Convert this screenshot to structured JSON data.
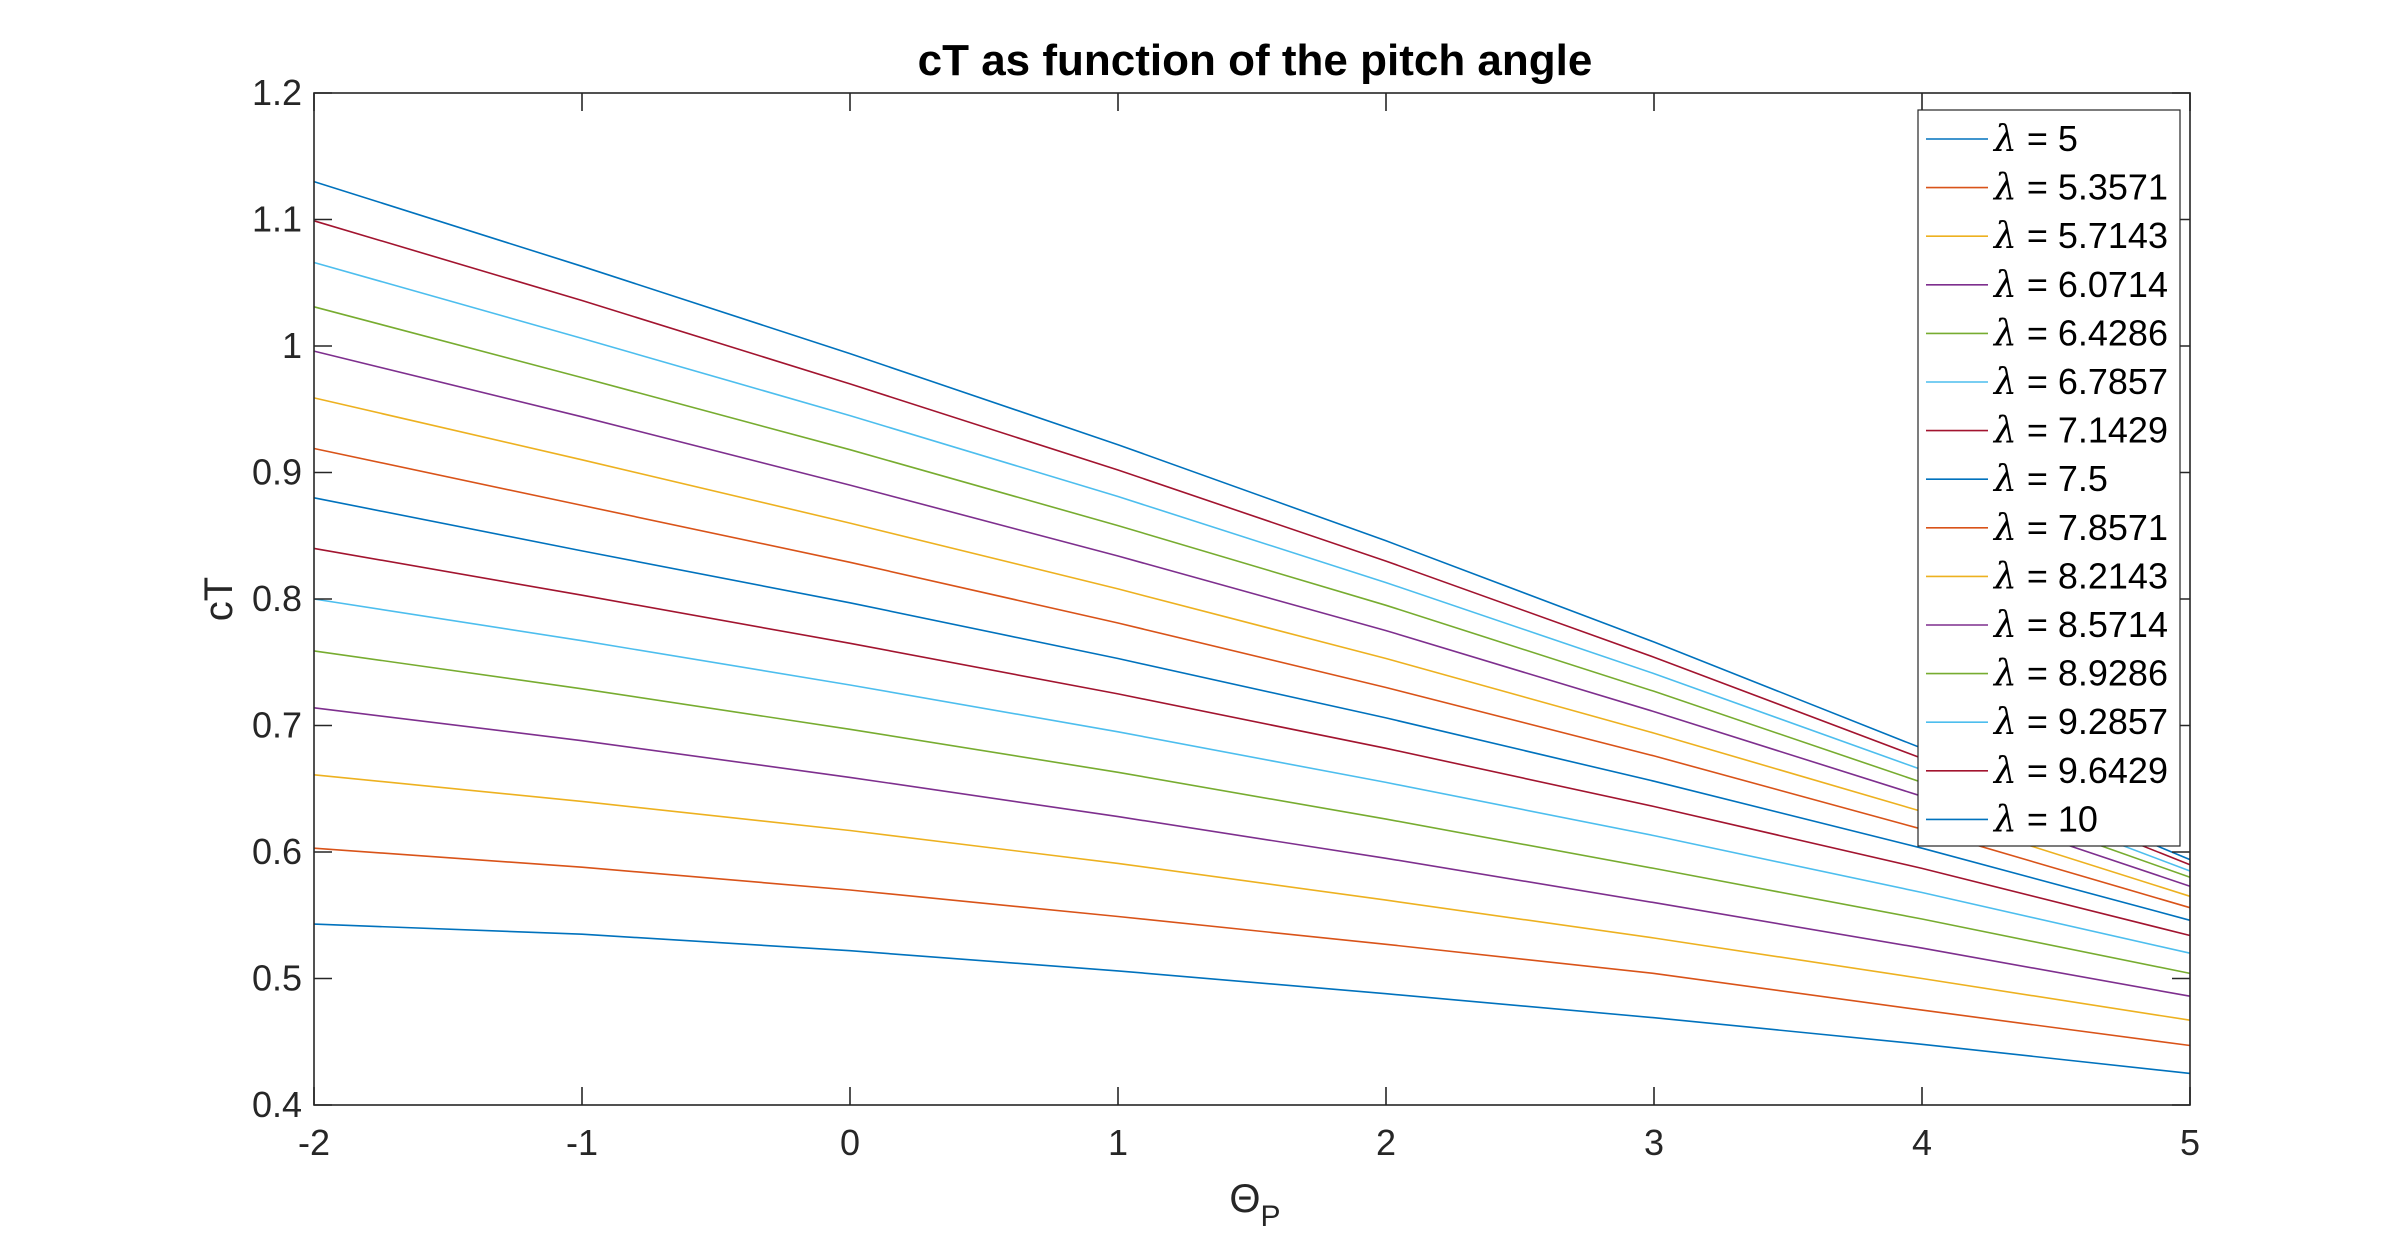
{
  "chart_data": {
    "type": "line",
    "title": "cT as function of the pitch angle",
    "xlabel": "Θ",
    "xlabel_subscript": "P",
    "ylabel": "cT",
    "xlim": [
      -2,
      5
    ],
    "ylim": [
      0.4,
      1.2
    ],
    "xticks": [
      -2,
      -1,
      0,
      1,
      2,
      3,
      4,
      5
    ],
    "yticks": [
      0.4,
      0.5,
      0.6,
      0.7,
      0.8,
      0.9,
      1,
      1.1,
      1.2
    ],
    "xtick_labels": [
      "-2",
      "-1",
      "0",
      "1",
      "2",
      "3",
      "4",
      "5"
    ],
    "ytick_labels": [
      "0.4",
      "0.5",
      "0.6",
      "0.7",
      "0.8",
      "0.9",
      "1",
      "1.1",
      "1.2"
    ],
    "grid": false,
    "legend_position": "top-right",
    "x": [
      -2,
      -1,
      0,
      1,
      2,
      3,
      4,
      5
    ],
    "series": [
      {
        "name": "λ = 5",
        "color": "#0072BD",
        "values": [
          0.543,
          0.535,
          0.522,
          0.506,
          0.488,
          0.469,
          0.448,
          0.425
        ]
      },
      {
        "name": "λ = 5.3571",
        "color": "#D95319",
        "values": [
          0.603,
          0.588,
          0.57,
          0.549,
          0.527,
          0.504,
          0.475,
          0.447
        ]
      },
      {
        "name": "λ = 5.7143",
        "color": "#EDB120",
        "values": [
          0.661,
          0.64,
          0.617,
          0.591,
          0.562,
          0.532,
          0.5,
          0.467
        ]
      },
      {
        "name": "λ = 6.0714",
        "color": "#7E2F8E",
        "values": [
          0.714,
          0.688,
          0.659,
          0.628,
          0.595,
          0.56,
          0.524,
          0.486
        ]
      },
      {
        "name": "λ = 6.4286",
        "color": "#77AC30",
        "values": [
          0.759,
          0.729,
          0.697,
          0.663,
          0.626,
          0.587,
          0.547,
          0.504
        ]
      },
      {
        "name": "λ = 6.7857",
        "color": "#4DBEEE",
        "values": [
          0.8,
          0.767,
          0.732,
          0.695,
          0.655,
          0.613,
          0.568,
          0.52
        ]
      },
      {
        "name": "λ = 7.1429",
        "color": "#A2142F",
        "values": [
          0.84,
          0.803,
          0.765,
          0.725,
          0.682,
          0.636,
          0.587,
          0.534
        ]
      },
      {
        "name": "λ = 7.5",
        "color": "#0072BD",
        "values": [
          0.88,
          0.838,
          0.797,
          0.753,
          0.706,
          0.656,
          0.603,
          0.546
        ]
      },
      {
        "name": "λ = 7.8571",
        "color": "#D95319",
        "values": [
          0.919,
          0.874,
          0.829,
          0.781,
          0.73,
          0.676,
          0.618,
          0.556
        ]
      },
      {
        "name": "λ = 8.2143",
        "color": "#EDB120",
        "values": [
          0.959,
          0.91,
          0.86,
          0.808,
          0.753,
          0.694,
          0.632,
          0.565
        ]
      },
      {
        "name": "λ = 8.5714",
        "color": "#7E2F8E",
        "values": [
          0.996,
          0.944,
          0.89,
          0.834,
          0.775,
          0.711,
          0.644,
          0.573
        ]
      },
      {
        "name": "λ = 8.9286",
        "color": "#77AC30",
        "values": [
          1.031,
          0.975,
          0.918,
          0.858,
          0.795,
          0.727,
          0.655,
          0.58
        ]
      },
      {
        "name": "λ = 9.2857",
        "color": "#4DBEEE",
        "values": [
          1.066,
          1.006,
          0.945,
          0.881,
          0.813,
          0.741,
          0.665,
          0.585
        ]
      },
      {
        "name": "λ = 9.6429",
        "color": "#A2142F",
        "values": [
          1.099,
          1.036,
          0.97,
          0.902,
          0.83,
          0.754,
          0.674,
          0.59
        ]
      },
      {
        "name": "λ = 10",
        "color": "#0072BD",
        "values": [
          1.13,
          1.063,
          0.994,
          0.922,
          0.846,
          0.766,
          0.682,
          0.594
        ]
      }
    ]
  }
}
